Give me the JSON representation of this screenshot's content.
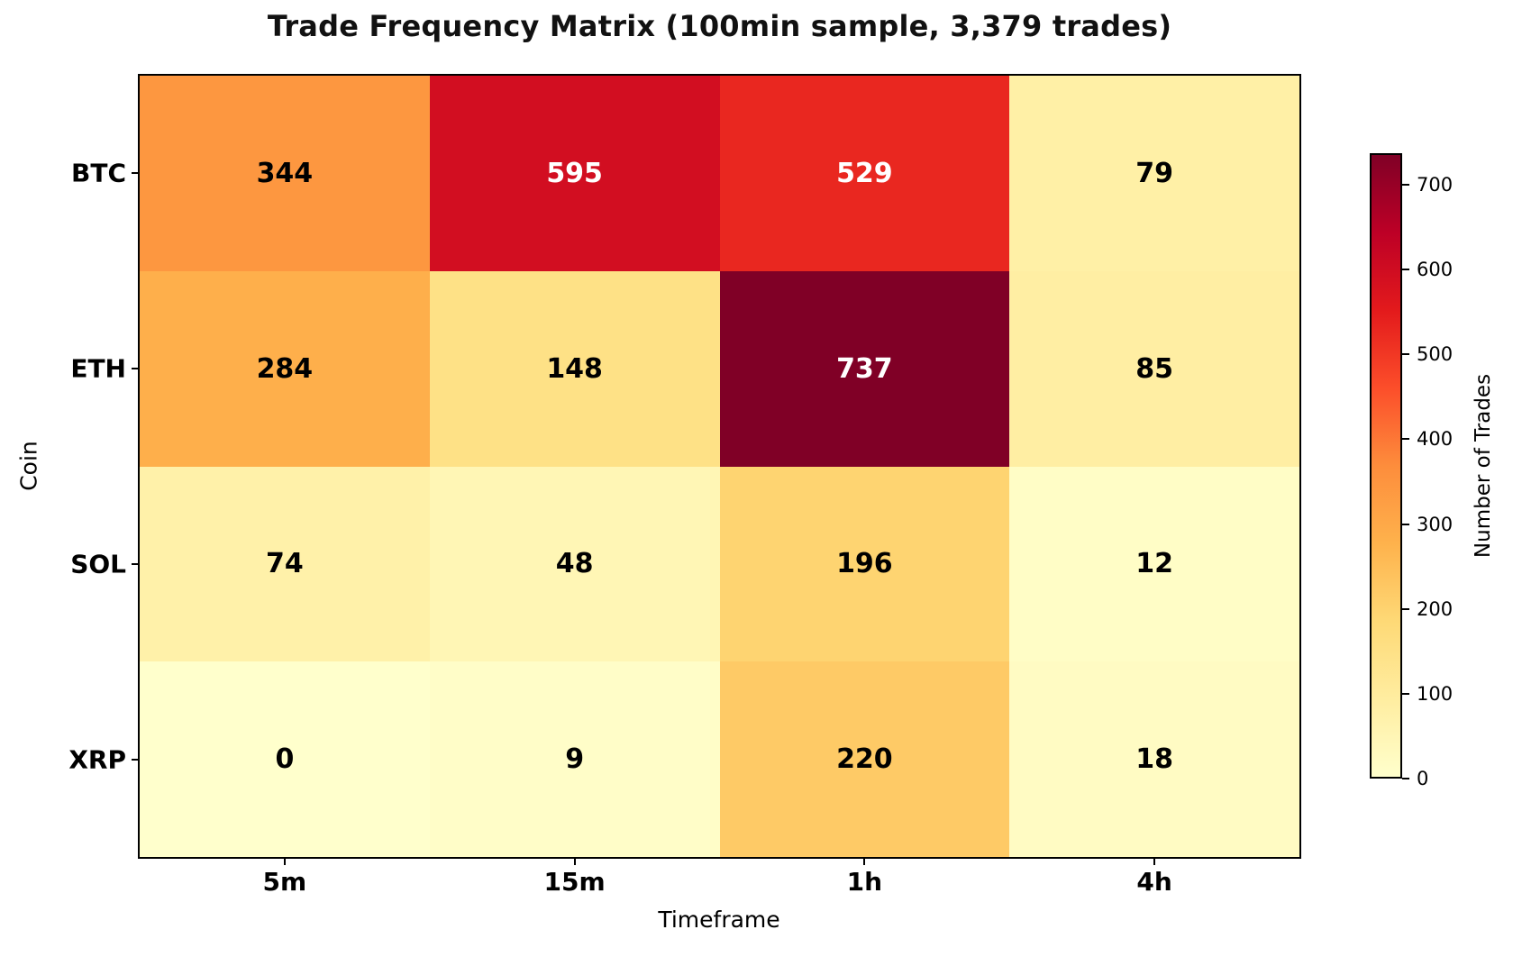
{
  "title": "Trade Frequency Matrix (100min sample, 3,379 trades)",
  "chart_data": {
    "type": "heatmap",
    "title": "Trade Frequency Matrix (100min sample, 3,379 trades)",
    "xlabel": "Timeframe",
    "ylabel": "Coin",
    "columns": [
      "5m",
      "15m",
      "1h",
      "4h"
    ],
    "rows": [
      "BTC",
      "ETH",
      "SOL",
      "XRP"
    ],
    "values": [
      [
        344,
        595,
        529,
        79
      ],
      [
        284,
        148,
        737,
        85
      ],
      [
        74,
        48,
        196,
        12
      ],
      [
        0,
        9,
        220,
        18
      ]
    ],
    "cell_colors": [
      [
        "#FD9740",
        "#D20E21",
        "#E92720",
        "#FFF0A6"
      ],
      [
        "#FEAF4B",
        "#FEE186",
        "#800026",
        "#FFEEA3"
      ],
      [
        "#FFF1A9",
        "#FFF6B5",
        "#FED471",
        "#FFFDC6"
      ],
      [
        "#FFFFCC",
        "#FFFDC8",
        "#FECA66",
        "#FFFBC3"
      ]
    ],
    "cell_text_colors": [
      [
        "#000000",
        "#FFFFFF",
        "#FFFFFF",
        "#000000"
      ],
      [
        "#000000",
        "#000000",
        "#FFFFFF",
        "#000000"
      ],
      [
        "#000000",
        "#000000",
        "#000000",
        "#000000"
      ],
      [
        "#000000",
        "#000000",
        "#000000",
        "#000000"
      ]
    ],
    "colorbar": {
      "label": "Number of Trades",
      "ticks": [
        0,
        100,
        200,
        300,
        400,
        500,
        600,
        700
      ],
      "min": 0,
      "max": 737,
      "colormap": "YlOrRd",
      "gradient": [
        "#FFFFCC",
        "#FFEDA0",
        "#FED976",
        "#FEB24C",
        "#FD8D3C",
        "#FC4E2A",
        "#E31A1C",
        "#BD0026",
        "#800026"
      ]
    }
  }
}
